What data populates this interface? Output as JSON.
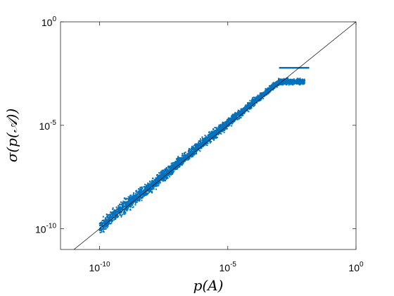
{
  "chart_data": {
    "type": "scatter",
    "xlabel": "p(A)",
    "ylabel": "σ(p(𝒜))",
    "x_scale": "log",
    "y_scale": "log",
    "xlim": [
      3e-12,
      1
    ],
    "ylim": [
      1e-11,
      1
    ],
    "grid": false,
    "legend": "none",
    "x_ticks": [
      {
        "base": "10",
        "exp": "-10",
        "value": 1e-10
      },
      {
        "base": "10",
        "exp": "-5",
        "value": 1e-05
      },
      {
        "base": "10",
        "exp": "0",
        "value": 1
      }
    ],
    "y_ticks": [
      {
        "base": "10",
        "exp": "-10",
        "value": 1e-10
      },
      {
        "base": "10",
        "exp": "-5",
        "value": 1e-05
      },
      {
        "base": "10",
        "exp": "0",
        "value": 1
      }
    ],
    "reference_line": {
      "style": "y = x",
      "color": "#000000"
    },
    "series": [
      {
        "color": "#0072bd",
        "x_range": [
          1e-10,
          0.01
        ],
        "band_low": [
          [
            1e-10,
            4e-11
          ],
          [
            1e-09,
            4e-10
          ],
          [
            1e-08,
            4e-09
          ],
          [
            1e-07,
            5e-08
          ],
          [
            1e-06,
            6e-07
          ],
          [
            1e-05,
            6e-06
          ],
          [
            0.0001,
            7e-05
          ],
          [
            0.001,
            0.0008
          ]
        ],
        "band_high": [
          [
            1e-10,
            3e-10
          ],
          [
            1e-09,
            4e-09
          ],
          [
            1e-08,
            3e-08
          ],
          [
            1e-07,
            3e-07
          ],
          [
            1e-06,
            3e-06
          ],
          [
            1e-05,
            2.5e-05
          ],
          [
            0.0001,
            0.00025
          ],
          [
            0.001,
            0.002
          ]
        ],
        "plateau": {
          "x": [
            0.001,
            0.015
          ],
          "y": 0.006
        }
      }
    ]
  }
}
